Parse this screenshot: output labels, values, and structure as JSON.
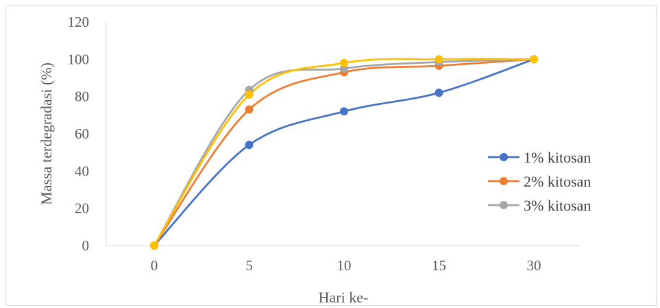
{
  "chart_data": {
    "type": "line",
    "title": "",
    "xlabel": "Hari ke-",
    "ylabel": "Massa terdegradasi (%)",
    "categories": [
      "0",
      "5",
      "10",
      "15",
      "30"
    ],
    "ylim": [
      0,
      120
    ],
    "yticks": [
      "0",
      "20",
      "40",
      "60",
      "80",
      "100",
      "120"
    ],
    "grid": false,
    "smooth": true,
    "legend_position": "right",
    "series": [
      {
        "name": "1% kitosan",
        "color": "#4472C4",
        "values": [
          0,
          54,
          72,
          82,
          100
        ]
      },
      {
        "name": "2% kitosan",
        "color": "#ED7D31",
        "values": [
          0,
          73,
          93,
          96.5,
          100
        ]
      },
      {
        "name": "3% kitosan",
        "color": "#A5A5A5",
        "values": [
          0,
          83.5,
          95,
          98.5,
          100
        ]
      },
      {
        "name": "",
        "color": "#FFC000",
        "values": [
          0,
          81,
          98,
          100,
          100
        ]
      }
    ]
  }
}
